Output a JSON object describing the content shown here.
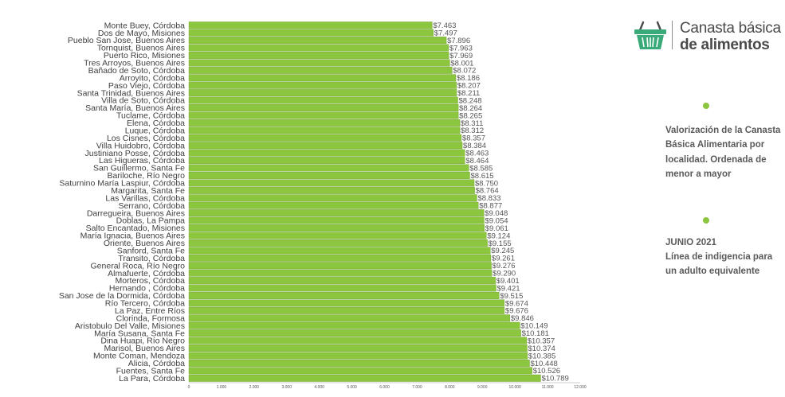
{
  "brand": {
    "title_line1": "Canasta básica",
    "title_line2": "de alimentos",
    "icon": "shopping-basket-icon"
  },
  "sidebar": {
    "description": "Valorización de la Canasta Básica Alimentaria por localidad. Ordenada de menor a mayor",
    "date": "JUNIO 2021",
    "note": "Línea de indigencia para un adulto equivalente"
  },
  "colors": {
    "bar": "#8cc63e",
    "bar_edge": "#6e9f2c",
    "dot": "#8cc63e",
    "text": "#3f3f3f"
  },
  "chart_data": {
    "type": "bar",
    "orientation": "horizontal",
    "title": "",
    "xlabel": "",
    "ylabel": "",
    "xlim": [
      0,
      12000
    ],
    "ticks": [
      "0",
      "1.000",
      "2.000",
      "3.000",
      "4.000",
      "5.000",
      "6.000",
      "7.000",
      "8.000",
      "9.000",
      "10.000",
      "11.000",
      "12.000"
    ],
    "categories": [
      "Monte Buey, Córdoba",
      "Dos de Mayo, Misiones",
      "Pueblo San Jose, Buenos Aires",
      "Tornquist, Buenos Aires",
      "Puerto Rico, Misiones",
      "Tres Arroyos, Buenos Aires",
      "Bañado de Soto, Córdoba",
      "Arroyito, Córdoba",
      "Paso Viejo, Córdoba",
      "Santa Trinidad, Buenos Aires",
      "Villa de Soto, Córdoba",
      "Santa María, Buenos Aires",
      "Tuclame, Córdoba",
      "Elena, Córdoba",
      "Luque, Córdoba",
      "Los Cisnes, Córdoba",
      "Villa Huidobro, Córdoba",
      "Justiniano Posse, Córdoba",
      "Las Higueras, Córdoba",
      "San Guillermo, Santa Fe",
      "Bariloche, Río Negro",
      "Saturnino María Laspiur, Córdoba",
      "Margarita, Santa Fe",
      "Las Varillas, Córdoba",
      "Serrano, Córdoba",
      "Darregueira, Buenos Aires",
      "Doblas, La Pampa",
      "Salto Encantado, Misiones",
      "María Ignacia, Buenos Aires",
      "Oriente, Buenos Aires",
      "Sanford, Santa Fe",
      "Transito, Córdoba",
      "General Roca, Río Negro",
      "Almafuerte, Córdoba",
      "Morteros, Córdoba",
      "Hernando , Córdoba",
      "San Jose de la Dormida, Córdoba",
      "Río Tercero, Córdoba",
      "La Paz, Entre Ríos",
      "Clorinda, Formosa",
      "Aristobulo Del Valle, Misiones",
      "María Susana, Santa Fe",
      "Dina Huapi, Río Negro",
      "Marisol, Buenos Aires",
      "Monte Coman, Mendoza",
      "Alicia, Córdoba",
      "Fuentes, Santa Fe",
      "La Para, Córdoba"
    ],
    "values": [
      7463,
      7497,
      7896,
      7963,
      7969,
      8001,
      8072,
      8186,
      8207,
      8211,
      8248,
      8264,
      8265,
      8311,
      8312,
      8357,
      8384,
      8463,
      8464,
      8585,
      8615,
      8750,
      8764,
      8833,
      8877,
      9048,
      9054,
      9061,
      9124,
      9155,
      9245,
      9261,
      9276,
      9290,
      9401,
      9421,
      9515,
      9674,
      9676,
      9846,
      10149,
      10181,
      10357,
      10374,
      10385,
      10448,
      10526,
      10789
    ],
    "value_labels": [
      "$7.463",
      "$7.497",
      "$7.896",
      "$7.963",
      "$7.969",
      "$8.001",
      "$8.072",
      "$8.186",
      "$8.207",
      "$8.211",
      "$8.248",
      "$8.264",
      "$8.265",
      "$8.311",
      "$8.312",
      "$8.357",
      "$8.384",
      "$8.463",
      "$8.464",
      "$8.585",
      "$8.615",
      "$8.750",
      "$8.764",
      "$8.833",
      "$8.877",
      "$9.048",
      "$9.054",
      "$9.061",
      "$9.124",
      "$9.155",
      "$9.245",
      "$9.261",
      "$9.276",
      "$9.290",
      "$9.401",
      "$9.421",
      "$9.515",
      "$9.674",
      "$9.676",
      "$9.846",
      "$10.149",
      "$10.181",
      "$10.357",
      "$10.374",
      "$10.385",
      "$10.448",
      "$10.526",
      "$10.789"
    ]
  }
}
